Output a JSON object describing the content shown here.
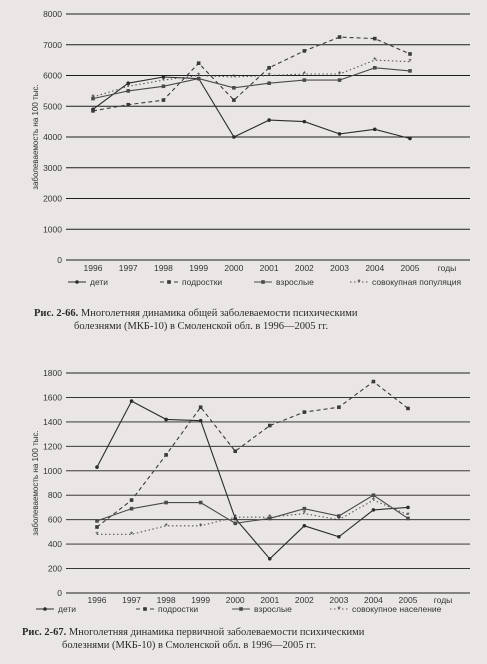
{
  "chart_data": [
    {
      "type": "line",
      "ylabel": "заболеваемость на 100 тыс.",
      "xlabel": "годы",
      "ylim": [
        0,
        8000
      ],
      "ytick_labels": [
        "0",
        "1000",
        "2000",
        "3000",
        "4000",
        "5000",
        "6000",
        "7000",
        "8000"
      ],
      "categories": [
        "1996",
        "1997",
        "1998",
        "1999",
        "2000",
        "2001",
        "2002",
        "2003",
        "2004",
        "2005"
      ],
      "grid": "horizontal",
      "legend_position": "bottom",
      "series": [
        {
          "name": "дети",
          "values": [
            4900,
            5750,
            5950,
            5900,
            4000,
            4550,
            4500,
            4100,
            4250,
            3950
          ]
        },
        {
          "name": "подростки",
          "values": [
            4850,
            5050,
            5200,
            6400,
            5200,
            6250,
            6800,
            7250,
            7200,
            6700
          ]
        },
        {
          "name": "взрослые",
          "values": [
            5250,
            5500,
            5650,
            5900,
            5600,
            5750,
            5850,
            5850,
            6250,
            6150
          ]
        },
        {
          "name": "совокупная популяция",
          "values": [
            5300,
            5650,
            5850,
            6000,
            5950,
            6000,
            6050,
            6050,
            6500,
            6450
          ]
        }
      ],
      "caption_num": "Рис. 2-66.",
      "caption_line1": "Многолетняя динамика общей заболеваемости психическими",
      "caption_line2": "болезнями (МКБ-10) в Смоленской обл. в 1996—2005 гг."
    },
    {
      "type": "line",
      "ylabel": "заболеваемость на 100 тыс.",
      "xlabel": "годы",
      "ylim": [
        0,
        1800
      ],
      "ytick_labels": [
        "0",
        "200",
        "400",
        "600",
        "800",
        "1000",
        "1200",
        "1400",
        "1600",
        "1800"
      ],
      "categories": [
        "1996",
        "1997",
        "1998",
        "1999",
        "2000",
        "2001",
        "2002",
        "2003",
        "2004",
        "2005"
      ],
      "grid": "horizontal",
      "legend_position": "bottom",
      "series": [
        {
          "name": "дети",
          "values": [
            1030,
            1570,
            1420,
            1410,
            610,
            280,
            550,
            460,
            680,
            700
          ]
        },
        {
          "name": "подростки",
          "values": [
            540,
            760,
            1130,
            1520,
            1160,
            1370,
            1480,
            1520,
            1730,
            1510
          ]
        },
        {
          "name": "взрослые",
          "values": [
            590,
            690,
            740,
            740,
            570,
            610,
            690,
            630,
            800,
            610
          ]
        },
        {
          "name": "совокупное население",
          "values": [
            480,
            480,
            550,
            550,
            620,
            620,
            650,
            600,
            760,
            640
          ]
        }
      ],
      "caption_num": "Рис. 2-67.",
      "caption_line1": "Многолетняя динамика первичной заболеваемости психическими",
      "caption_line2": "болезнями (МКБ-10) в Смоленской обл. в 1996—2005 гг."
    }
  ]
}
